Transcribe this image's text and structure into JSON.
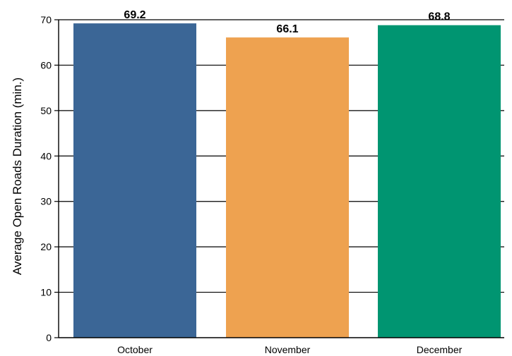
{
  "chart_data": {
    "type": "bar",
    "categories": [
      "October",
      "November",
      "December"
    ],
    "values": [
      69.2,
      66.1,
      68.8
    ],
    "value_labels": [
      "69.2",
      "66.1",
      "68.8"
    ],
    "colors": [
      "#3b6696",
      "#eea250",
      "#009571"
    ],
    "title": "",
    "xlabel": "",
    "ylabel": "Average Open Roads Duration (min.)",
    "ylim": [
      0,
      70
    ],
    "yticks": [
      0,
      10,
      20,
      30,
      40,
      50,
      60,
      70
    ],
    "ytick_labels": [
      "0",
      "10",
      "20",
      "30",
      "40",
      "50",
      "60",
      "70"
    ],
    "grid": true,
    "legend": "none"
  }
}
